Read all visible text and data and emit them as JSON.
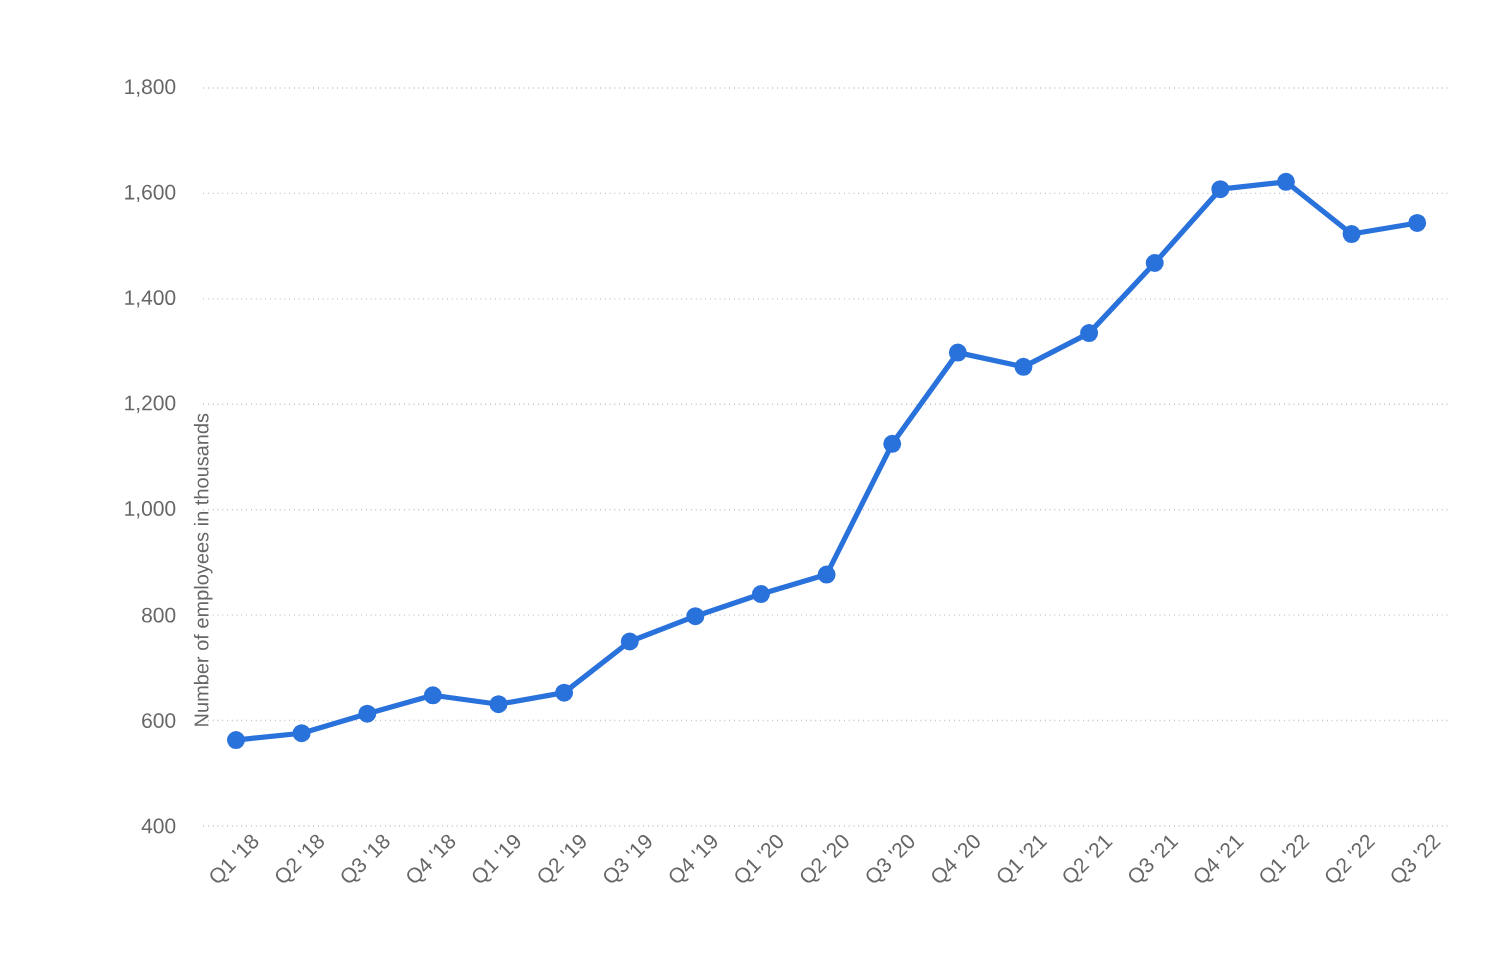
{
  "chart_data": {
    "type": "line",
    "ylabel": "Number of employees in thousands",
    "categories": [
      "Q1 '18",
      "Q2 '18",
      "Q3 '18",
      "Q4 '18",
      "Q1 '19",
      "Q2 '19",
      "Q3 '19",
      "Q4 '19",
      "Q1 '20",
      "Q2 '20",
      "Q3 '20",
      "Q4 '20",
      "Q1 '21",
      "Q2 '21",
      "Q3 '21",
      "Q4 '21",
      "Q1 '22",
      "Q2 '22",
      "Q3 '22"
    ],
    "values": [
      563,
      576,
      613,
      648,
      631,
      653,
      750,
      798,
      840,
      877,
      1125,
      1298,
      1271,
      1335,
      1468,
      1608,
      1622,
      1523,
      1544
    ],
    "color": "#2a72db",
    "ylim": [
      400,
      1800
    ],
    "yticks": [
      400,
      600,
      800,
      {
        "value": 1000,
        "label": "1,000"
      },
      {
        "value": 1200,
        "label": "1,200"
      },
      {
        "value": 1400,
        "label": "1,400"
      },
      {
        "value": 1600,
        "label": "1,600"
      },
      {
        "value": 1800,
        "label": "1,800"
      }
    ],
    "grid": "y",
    "marker": "circle",
    "line_style": "solid"
  }
}
